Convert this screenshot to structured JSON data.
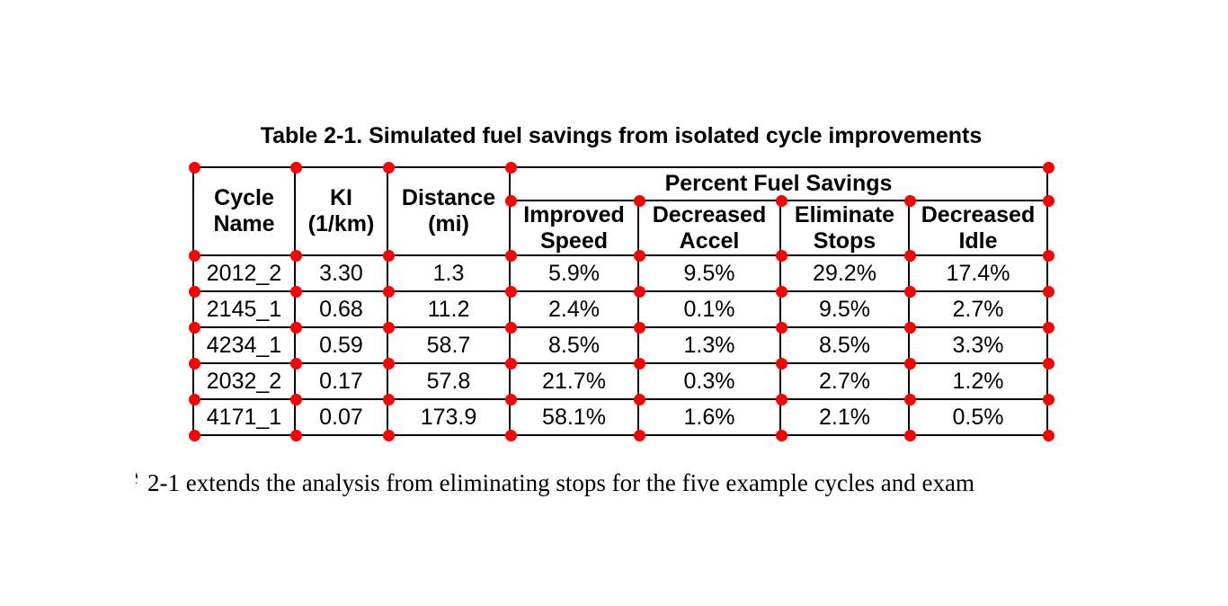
{
  "page": {
    "title": "Table 2-1. Simulated fuel savings from isolated cycle improvements",
    "body_text": "2-1 extends the analysis from eliminating stops for the five example cycles and exam",
    "body_text_clipped_fragment": "e"
  },
  "table": {
    "span_header": "Percent Fuel Savings",
    "headers": {
      "cycle_name": "Cycle\nName",
      "ki": "KI\n(1/km)",
      "distance": "Distance\n(mi)",
      "improved_speed": "Improved\nSpeed",
      "decreased_accel": "Decreased\nAccel",
      "eliminate_stops": "Eliminate\nStops",
      "decreased_idle": "Decreased\nIdle"
    },
    "rows": [
      [
        "2012_2",
        "3.30",
        "1.3",
        "5.9%",
        "9.5%",
        "29.2%",
        "17.4%"
      ],
      [
        "2145_1",
        "0.68",
        "11.2",
        "2.4%",
        "0.1%",
        "9.5%",
        "2.7%"
      ],
      [
        "4234_1",
        "0.59",
        "58.7",
        "8.5%",
        "1.3%",
        "8.5%",
        "3.3%"
      ],
      [
        "2032_2",
        "0.17",
        "57.8",
        "21.7%",
        "0.3%",
        "2.7%",
        "1.2%"
      ],
      [
        "4171_1",
        "0.07",
        "173.9",
        "58.1%",
        "1.6%",
        "2.1%",
        "0.5%"
      ]
    ]
  },
  "annotations": {
    "dot_color": "#ff0000"
  }
}
